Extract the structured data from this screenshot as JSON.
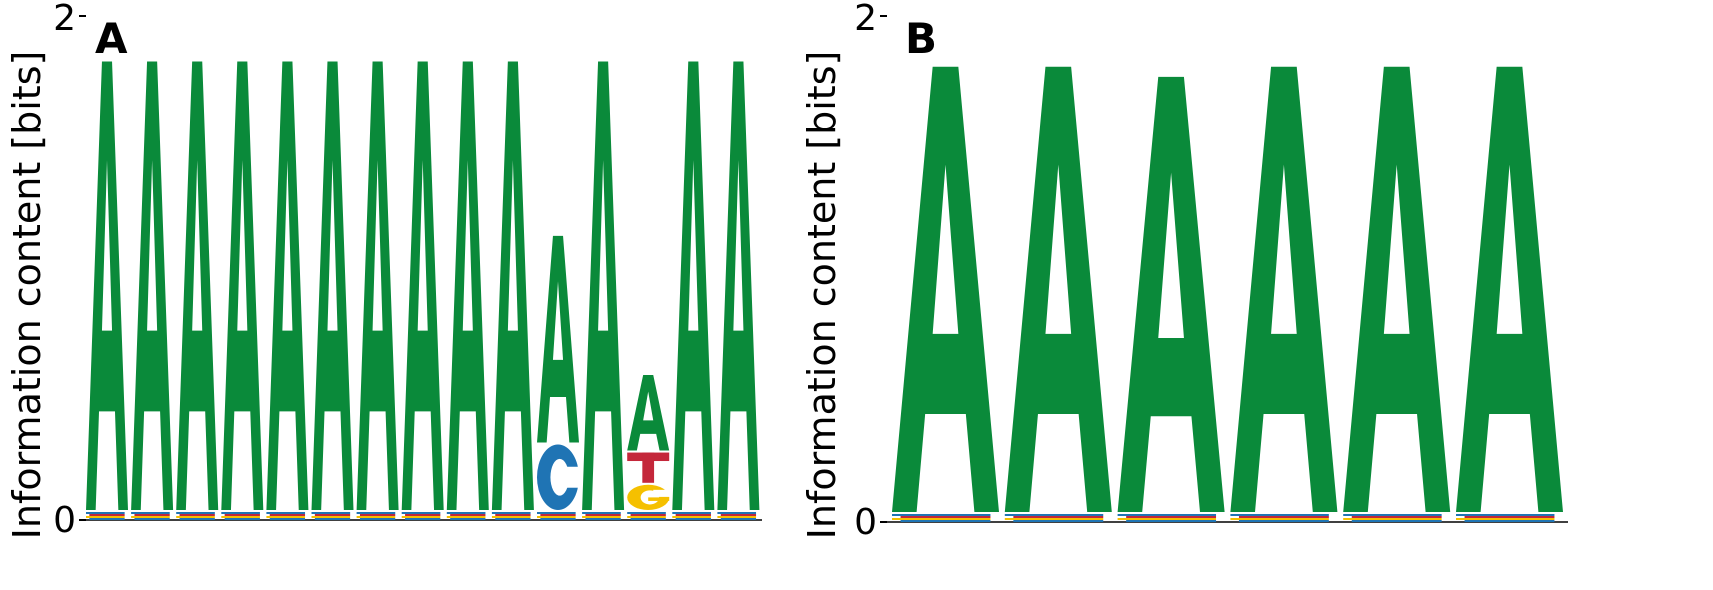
{
  "colors": {
    "A": "#0a8a3a",
    "C": "#1f74b4",
    "G": "#f5c000",
    "T": "#c4273a",
    "axis": "#000000"
  },
  "chart_data": [
    {
      "type": "sequence-logo",
      "panel_label": "A",
      "ylabel": "Information content [bits]",
      "ylim": [
        0,
        2
      ],
      "y_ticks": [
        "0",
        "2"
      ],
      "positions": [
        {
          "stack": [
            {
              "base": "A",
              "bits": 1.78
            }
          ]
        },
        {
          "stack": [
            {
              "base": "A",
              "bits": 1.78
            }
          ]
        },
        {
          "stack": [
            {
              "base": "A",
              "bits": 1.78
            }
          ]
        },
        {
          "stack": [
            {
              "base": "A",
              "bits": 1.78
            }
          ]
        },
        {
          "stack": [
            {
              "base": "A",
              "bits": 1.78
            }
          ]
        },
        {
          "stack": [
            {
              "base": "A",
              "bits": 1.78
            }
          ]
        },
        {
          "stack": [
            {
              "base": "A",
              "bits": 1.78
            }
          ]
        },
        {
          "stack": [
            {
              "base": "A",
              "bits": 1.78
            }
          ]
        },
        {
          "stack": [
            {
              "base": "A",
              "bits": 1.78
            }
          ]
        },
        {
          "stack": [
            {
              "base": "A",
              "bits": 1.78
            }
          ]
        },
        {
          "stack": [
            {
              "base": "C",
              "bits": 0.26
            },
            {
              "base": "A",
              "bits": 0.82
            }
          ]
        },
        {
          "stack": [
            {
              "base": "A",
              "bits": 1.78
            }
          ]
        },
        {
          "stack": [
            {
              "base": "G",
              "bits": 0.1
            },
            {
              "base": "T",
              "bits": 0.12
            },
            {
              "base": "A",
              "bits": 0.3
            }
          ]
        },
        {
          "stack": [
            {
              "base": "A",
              "bits": 1.78
            }
          ]
        },
        {
          "stack": [
            {
              "base": "A",
              "bits": 1.78
            }
          ]
        }
      ]
    },
    {
      "type": "sequence-logo",
      "panel_label": "B",
      "ylabel": "Information content [bits]",
      "ylim": [
        0,
        2
      ],
      "y_ticks": [
        "0",
        "2"
      ],
      "positions": [
        {
          "stack": [
            {
              "base": "A",
              "bits": 1.76
            }
          ]
        },
        {
          "stack": [
            {
              "base": "A",
              "bits": 1.76
            }
          ]
        },
        {
          "stack": [
            {
              "base": "A",
              "bits": 1.72
            }
          ]
        },
        {
          "stack": [
            {
              "base": "A",
              "bits": 1.76
            }
          ]
        },
        {
          "stack": [
            {
              "base": "A",
              "bits": 1.76
            }
          ]
        },
        {
          "stack": [
            {
              "base": "A",
              "bits": 1.76
            }
          ]
        }
      ]
    }
  ]
}
